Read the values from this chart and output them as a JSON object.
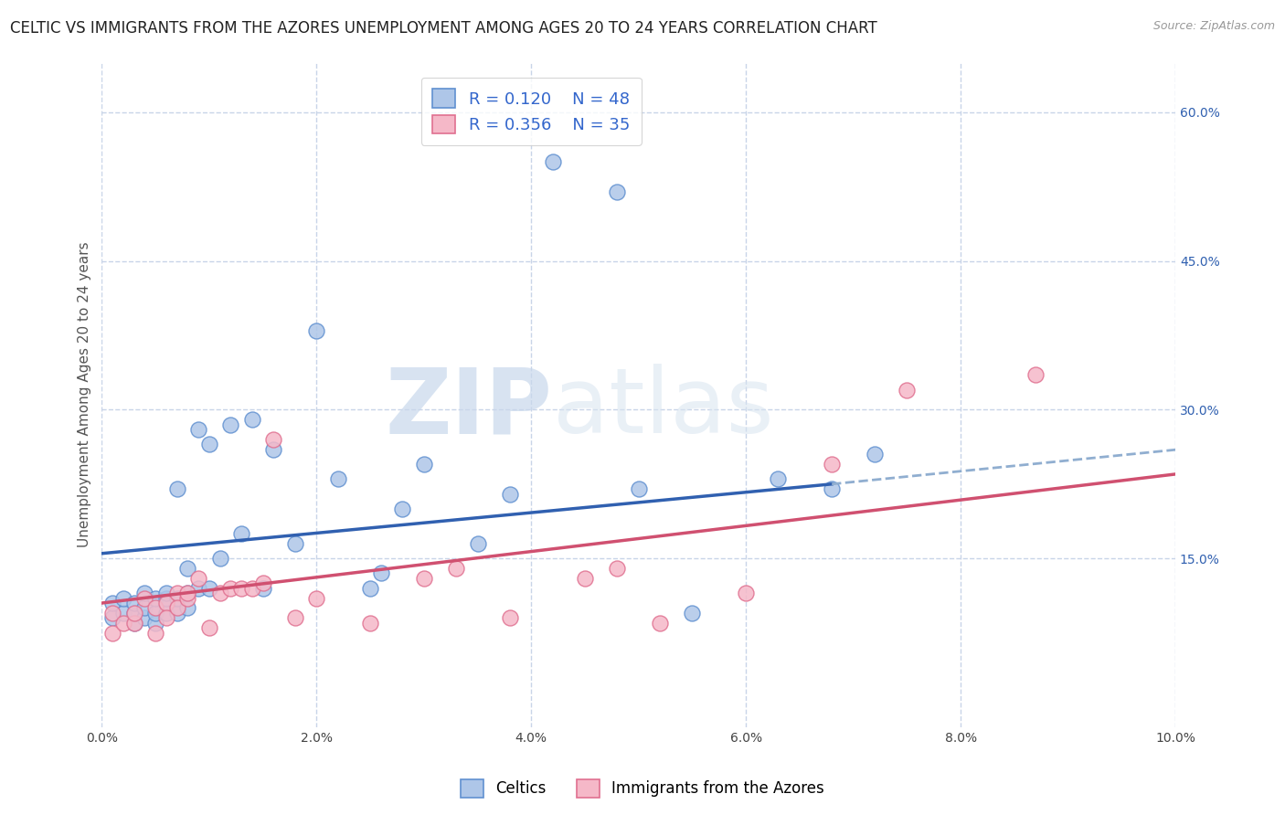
{
  "title": "CELTIC VS IMMIGRANTS FROM THE AZORES UNEMPLOYMENT AMONG AGES 20 TO 24 YEARS CORRELATION CHART",
  "source": "Source: ZipAtlas.com",
  "ylabel_left": "Unemployment Among Ages 20 to 24 years",
  "x_min": 0.0,
  "x_max": 0.1,
  "y_min": -0.02,
  "y_max": 0.65,
  "y_ticks_right": [
    0.15,
    0.3,
    0.45,
    0.6
  ],
  "y_tick_labels_right": [
    "15.0%",
    "30.0%",
    "45.0%",
    "60.0%"
  ],
  "x_ticks": [
    0.0,
    0.02,
    0.04,
    0.06,
    0.08,
    0.1
  ],
  "x_tick_labels": [
    "0.0%",
    "2.0%",
    "4.0%",
    "6.0%",
    "8.0%",
    "10.0%"
  ],
  "celtics_color": "#aec6e8",
  "azores_color": "#f5b8c8",
  "celtics_edge_color": "#6090d0",
  "azores_edge_color": "#e07090",
  "celtics_line_color": "#3060b0",
  "azores_line_color": "#d05070",
  "celtics_dashed_color": "#90aed0",
  "legend_label_celtics": "Celtics",
  "legend_label_azores": "Immigrants from the Azores",
  "watermark_zip": "ZIP",
  "watermark_atlas": "atlas",
  "background_color": "#ffffff",
  "grid_color": "#c8d4e8",
  "title_fontsize": 12,
  "axis_label_fontsize": 11,
  "tick_fontsize": 10,
  "legend_fontsize": 12,
  "celtics_scatter_x": [
    0.001,
    0.001,
    0.002,
    0.002,
    0.003,
    0.003,
    0.003,
    0.004,
    0.004,
    0.004,
    0.005,
    0.005,
    0.005,
    0.006,
    0.006,
    0.006,
    0.007,
    0.007,
    0.007,
    0.008,
    0.008,
    0.008,
    0.009,
    0.009,
    0.01,
    0.01,
    0.011,
    0.012,
    0.013,
    0.014,
    0.015,
    0.016,
    0.018,
    0.02,
    0.022,
    0.025,
    0.026,
    0.028,
    0.03,
    0.035,
    0.038,
    0.042,
    0.048,
    0.05,
    0.055,
    0.063,
    0.068,
    0.072
  ],
  "celtics_scatter_y": [
    0.09,
    0.105,
    0.095,
    0.11,
    0.085,
    0.095,
    0.105,
    0.09,
    0.1,
    0.115,
    0.085,
    0.095,
    0.11,
    0.095,
    0.11,
    0.115,
    0.095,
    0.11,
    0.22,
    0.1,
    0.115,
    0.14,
    0.12,
    0.28,
    0.12,
    0.265,
    0.15,
    0.285,
    0.175,
    0.29,
    0.12,
    0.26,
    0.165,
    0.38,
    0.23,
    0.12,
    0.135,
    0.2,
    0.245,
    0.165,
    0.215,
    0.55,
    0.52,
    0.22,
    0.095,
    0.23,
    0.22,
    0.255
  ],
  "azores_scatter_x": [
    0.001,
    0.001,
    0.002,
    0.003,
    0.003,
    0.004,
    0.005,
    0.005,
    0.006,
    0.006,
    0.007,
    0.007,
    0.008,
    0.008,
    0.009,
    0.01,
    0.011,
    0.012,
    0.013,
    0.014,
    0.015,
    0.016,
    0.018,
    0.02,
    0.025,
    0.03,
    0.033,
    0.038,
    0.045,
    0.048,
    0.052,
    0.06,
    0.068,
    0.075,
    0.087
  ],
  "azores_scatter_y": [
    0.095,
    0.075,
    0.085,
    0.085,
    0.095,
    0.11,
    0.075,
    0.1,
    0.105,
    0.09,
    0.115,
    0.1,
    0.11,
    0.115,
    0.13,
    0.08,
    0.115,
    0.12,
    0.12,
    0.12,
    0.125,
    0.27,
    0.09,
    0.11,
    0.085,
    0.13,
    0.14,
    0.09,
    0.13,
    0.14,
    0.085,
    0.115,
    0.245,
    0.32,
    0.335
  ],
  "celtics_trend": [
    0.0,
    0.068,
    0.155,
    0.225
  ],
  "celtics_dashed": [
    0.068,
    0.105,
    0.225,
    0.265
  ],
  "azores_trend": [
    0.0,
    0.1,
    0.105,
    0.235
  ]
}
